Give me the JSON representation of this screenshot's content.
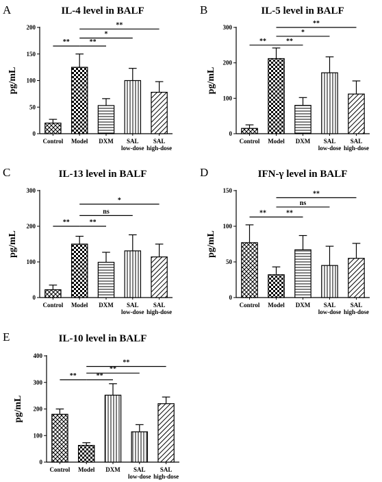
{
  "chart_data": [
    {
      "type": "bar",
      "panel_label": "A",
      "title": "IL-4 level in BALF",
      "ylabel": "pg/mL",
      "categories": [
        [
          "Control"
        ],
        [
          "Model"
        ],
        [
          "DXM"
        ],
        [
          "SAL",
          "low-dose"
        ],
        [
          "SAL",
          "high-dose"
        ]
      ],
      "values": [
        20,
        125,
        53,
        100,
        78
      ],
      "errors": [
        7,
        25,
        13,
        23,
        20
      ],
      "patterns": [
        "crosshatch",
        "checker",
        "horizontal",
        "vertical",
        "diagonal"
      ],
      "ylim": [
        0,
        200
      ],
      "yticks": [
        0,
        50,
        100,
        150,
        200
      ],
      "yticklabels": [
        "0",
        "50",
        "100",
        "150",
        "200"
      ],
      "significance": [
        {
          "from": 0,
          "to": 1,
          "label": "**",
          "y": 165
        },
        {
          "from": 1,
          "to": 2,
          "label": "**",
          "y": 165
        },
        {
          "from": 1,
          "to": 3,
          "label": "*",
          "y": 180
        },
        {
          "from": 1,
          "to": 4,
          "label": "**",
          "y": 197
        }
      ]
    },
    {
      "type": "bar",
      "panel_label": "B",
      "title": "IL-5 level in BALF",
      "ylabel": "pg/mL",
      "categories": [
        [
          "Control"
        ],
        [
          "Model"
        ],
        [
          "DXM"
        ],
        [
          "SAL",
          "low-dose"
        ],
        [
          "SAL",
          "high-dose"
        ]
      ],
      "values": [
        15,
        212,
        80,
        172,
        112
      ],
      "errors": [
        10,
        30,
        22,
        45,
        37
      ],
      "patterns": [
        "crosshatch",
        "checker",
        "horizontal",
        "vertical",
        "diagonal"
      ],
      "ylim": [
        0,
        300
      ],
      "yticks": [
        0,
        100,
        200,
        300
      ],
      "yticklabels": [
        "0",
        "100",
        "200",
        "300"
      ],
      "significance": [
        {
          "from": 0,
          "to": 1,
          "label": "**",
          "y": 250
        },
        {
          "from": 1,
          "to": 2,
          "label": "**",
          "y": 250
        },
        {
          "from": 1,
          "to": 3,
          "label": "*",
          "y": 275
        },
        {
          "from": 1,
          "to": 4,
          "label": "**",
          "y": 300
        }
      ]
    },
    {
      "type": "bar",
      "panel_label": "C",
      "title": "IL-13 level in BALF",
      "ylabel": "pg/mL",
      "categories": [
        [
          "Control"
        ],
        [
          "Model"
        ],
        [
          "DXM"
        ],
        [
          "SAL",
          "low-dose"
        ],
        [
          "SAL",
          "high-dose"
        ]
      ],
      "values": [
        22,
        150,
        99,
        131,
        114
      ],
      "errors": [
        13,
        22,
        28,
        45,
        36
      ],
      "patterns": [
        "crosshatch",
        "checker",
        "horizontal",
        "vertical",
        "diagonal"
      ],
      "ylim": [
        0,
        300
      ],
      "yticks": [
        0,
        100,
        200,
        300
      ],
      "yticklabels": [
        "0",
        "100",
        "200",
        "300"
      ],
      "significance": [
        {
          "from": 0,
          "to": 1,
          "label": "**",
          "y": 200
        },
        {
          "from": 1,
          "to": 2,
          "label": "**",
          "y": 200
        },
        {
          "from": 1,
          "to": 3,
          "label": "ns",
          "y": 230
        },
        {
          "from": 1,
          "to": 4,
          "label": "*",
          "y": 262
        }
      ]
    },
    {
      "type": "bar",
      "panel_label": "D",
      "title": "IFN-γ level in BALF",
      "ylabel": "pg/mL",
      "categories": [
        [
          "Control"
        ],
        [
          "Model"
        ],
        [
          "DXM"
        ],
        [
          "SAL",
          "low-dose"
        ],
        [
          "SAL",
          "high-dose"
        ]
      ],
      "values": [
        77,
        32,
        67,
        45,
        55
      ],
      "errors": [
        25,
        11,
        20,
        27,
        21
      ],
      "patterns": [
        "crosshatch",
        "checker",
        "horizontal",
        "vertical",
        "diagonal"
      ],
      "ylim": [
        0,
        150
      ],
      "yticks": [
        0,
        50,
        100,
        150
      ],
      "yticklabels": [
        "0",
        "50",
        "100",
        "150"
      ],
      "significance": [
        {
          "from": 0,
          "to": 1,
          "label": "**",
          "y": 113
        },
        {
          "from": 1,
          "to": 2,
          "label": "**",
          "y": 113
        },
        {
          "from": 1,
          "to": 3,
          "label": "ns",
          "y": 127
        },
        {
          "from": 1,
          "to": 4,
          "label": "**",
          "y": 140
        }
      ]
    },
    {
      "type": "bar",
      "panel_label": "E",
      "title": "IL-10 level in BALF",
      "ylabel": "pg/mL",
      "categories": [
        [
          "Control"
        ],
        [
          "Model"
        ],
        [
          "DXM"
        ],
        [
          "SAL",
          "low-dose"
        ],
        [
          "SAL",
          "high-dose"
        ]
      ],
      "values": [
        180,
        63,
        252,
        114,
        220
      ],
      "errors": [
        20,
        10,
        43,
        27,
        25
      ],
      "patterns": [
        "crosshatch",
        "checker",
        "vertical",
        "vertical",
        "diagonal"
      ],
      "ylim": [
        0,
        400
      ],
      "yticks": [
        0,
        100,
        200,
        300,
        400
      ],
      "yticklabels": [
        "0",
        "100",
        "200",
        "300",
        "400"
      ],
      "significance": [
        {
          "from": 0,
          "to": 1,
          "label": "**",
          "y": 310
        },
        {
          "from": 1,
          "to": 2,
          "label": "**",
          "y": 310
        },
        {
          "from": 1,
          "to": 3,
          "label": "**",
          "y": 335
        },
        {
          "from": 1,
          "to": 4,
          "label": "**",
          "y": 360
        }
      ]
    }
  ]
}
